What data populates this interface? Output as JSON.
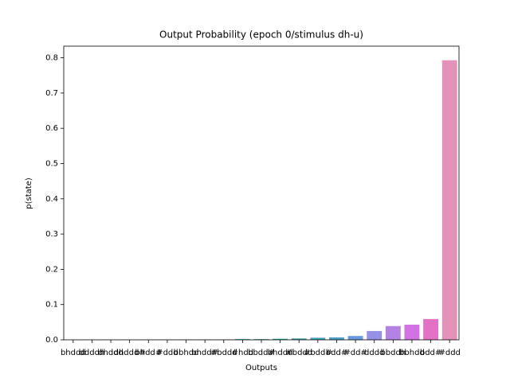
{
  "chart_data": {
    "type": "bar",
    "title": "Output Probability (epoch 0/stimulus dh-u)",
    "x_label": "Outputs",
    "y_label": "p(state)",
    "categories": [
      "bhddd",
      "ddddh",
      "dhddd",
      "dhddd#",
      "bhdd#",
      "#ddd",
      "bbhdd",
      "bhdd#",
      "#bddd",
      "#hdd",
      "bbdd#",
      "bhddd",
      "#bddd",
      "#bdd#",
      "bdd#",
      "#dd#",
      "dddd",
      "bbddh",
      "bbhdd",
      "bdd#",
      "#ddd"
    ],
    "values": [
      0.0002,
      0.0003,
      0.0003,
      0.0004,
      0.0005,
      0.0006,
      0.0008,
      0.0009,
      0.001,
      0.002,
      0.002,
      0.003,
      0.004,
      0.006,
      0.007,
      0.011,
      0.025,
      0.039,
      0.043,
      0.059,
      0.793
    ],
    "colors": [
      "#e28889",
      "#db8b6a",
      "#cf9149",
      "#c0963f",
      "#b09b3f",
      "#a09e3f",
      "#8fa23f",
      "#74a73f",
      "#52ab56",
      "#45aa78",
      "#47a88b",
      "#48a69a",
      "#49a4a7",
      "#4ba2b5",
      "#4e9fc8",
      "#6a9be0",
      "#9591e4",
      "#b383e4",
      "#d173e0",
      "#e272c3",
      "#e493b8"
    ],
    "ylim": [
      0,
      0.833
    ],
    "yticks": [
      0.0,
      0.1,
      0.2,
      0.3,
      0.4,
      0.5,
      0.6,
      0.7,
      0.8
    ],
    "ytick_labels": [
      "0.0",
      "0.1",
      "0.2",
      "0.3",
      "0.4",
      "0.5",
      "0.6",
      "0.7",
      "0.8"
    ]
  }
}
